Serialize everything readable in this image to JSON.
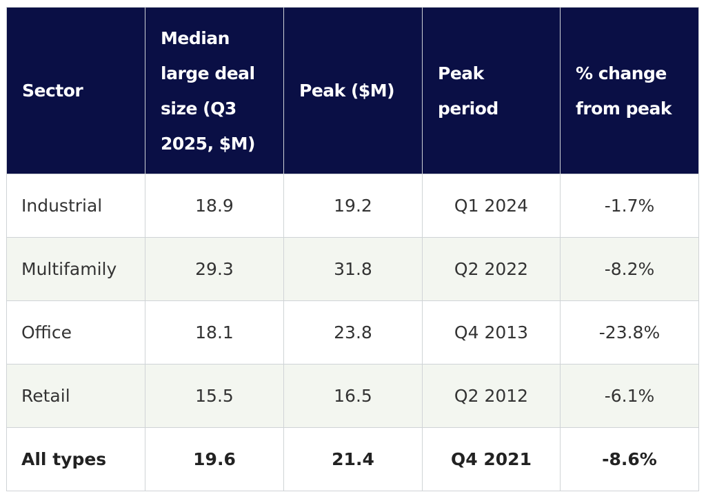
{
  "table": {
    "header": [
      "Sector",
      "Median large deal size (Q3 2025, $M)",
      "Peak ($M)",
      "Peak period",
      "% change from peak"
    ],
    "rows": [
      [
        "Industrial",
        "18.9",
        "19.2",
        "Q1 2024",
        "-1.7%"
      ],
      [
        "Multifamily",
        "29.3",
        "31.8",
        "Q2 2022",
        "-8.2%"
      ],
      [
        "Office",
        "18.1",
        "23.8",
        "Q4 2013",
        "-23.8%"
      ],
      [
        "Retail",
        "15.5",
        "16.5",
        "Q2 2012",
        "-6.1%"
      ],
      [
        "All types",
        "19.6",
        "21.4",
        "Q4 2021",
        "-8.6%"
      ]
    ]
  }
}
